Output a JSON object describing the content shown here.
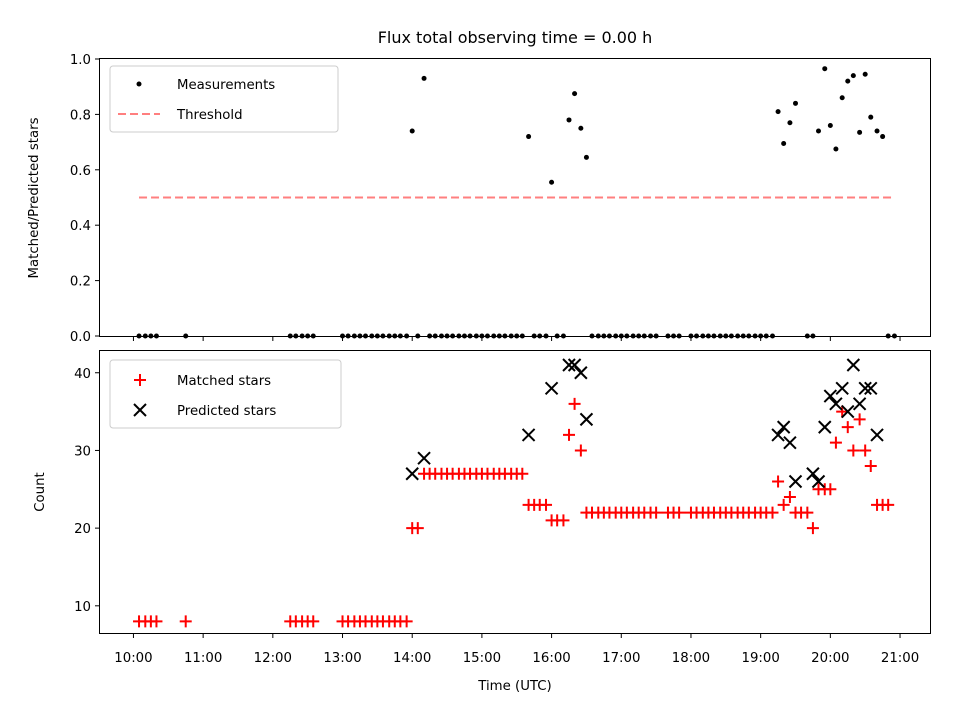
{
  "chart_data": [
    {
      "type": "scatter",
      "title": "Flux total observing time = 0.00 h",
      "xlabel": "",
      "ylabel": "Matched/Predicted stars",
      "xlim": [
        9.52,
        21.43
      ],
      "ylim": [
        0.0,
        1.0
      ],
      "yticks": [
        0.0,
        0.2,
        0.4,
        0.6,
        0.8,
        1.0
      ],
      "ytick_labels": [
        "0.0",
        "0.2",
        "0.4",
        "0.6",
        "0.8",
        "1.0"
      ],
      "legend": {
        "placement": "top-left",
        "entries": [
          "Measurements",
          "Threshold"
        ]
      },
      "series": [
        {
          "name": "Measurements",
          "marker": "dot",
          "color": "#000000",
          "points": [
            [
              10.08,
              0
            ],
            [
              10.17,
              0
            ],
            [
              10.25,
              0
            ],
            [
              10.33,
              0
            ],
            [
              10.75,
              0
            ],
            [
              12.25,
              0
            ],
            [
              12.33,
              0
            ],
            [
              12.42,
              0
            ],
            [
              12.5,
              0
            ],
            [
              12.58,
              0
            ],
            [
              13.0,
              0
            ],
            [
              13.08,
              0
            ],
            [
              13.17,
              0
            ],
            [
              13.25,
              0
            ],
            [
              13.33,
              0
            ],
            [
              13.42,
              0
            ],
            [
              13.5,
              0
            ],
            [
              13.58,
              0
            ],
            [
              13.67,
              0
            ],
            [
              13.75,
              0
            ],
            [
              13.83,
              0
            ],
            [
              13.92,
              0
            ],
            [
              14.0,
              0.74
            ],
            [
              14.08,
              0
            ],
            [
              14.17,
              0.93
            ],
            [
              14.25,
              0
            ],
            [
              14.33,
              0
            ],
            [
              14.42,
              0
            ],
            [
              14.5,
              0
            ],
            [
              14.58,
              0
            ],
            [
              14.67,
              0
            ],
            [
              14.75,
              0
            ],
            [
              14.83,
              0
            ],
            [
              14.92,
              0
            ],
            [
              15.0,
              0
            ],
            [
              15.08,
              0
            ],
            [
              15.17,
              0
            ],
            [
              15.25,
              0
            ],
            [
              15.33,
              0
            ],
            [
              15.42,
              0
            ],
            [
              15.5,
              0
            ],
            [
              15.58,
              0
            ],
            [
              15.67,
              0.72
            ],
            [
              15.75,
              0
            ],
            [
              15.83,
              0
            ],
            [
              15.92,
              0
            ],
            [
              16.0,
              0.555
            ],
            [
              16.08,
              0
            ],
            [
              16.17,
              0
            ],
            [
              16.25,
              0.78
            ],
            [
              16.33,
              0.875
            ],
            [
              16.42,
              0.75
            ],
            [
              16.5,
              0.645
            ],
            [
              16.58,
              0
            ],
            [
              16.67,
              0
            ],
            [
              16.75,
              0
            ],
            [
              16.83,
              0
            ],
            [
              16.92,
              0
            ],
            [
              17.0,
              0
            ],
            [
              17.08,
              0
            ],
            [
              17.17,
              0
            ],
            [
              17.25,
              0
            ],
            [
              17.33,
              0
            ],
            [
              17.42,
              0
            ],
            [
              17.5,
              0
            ],
            [
              17.67,
              0
            ],
            [
              17.75,
              0
            ],
            [
              17.83,
              0
            ],
            [
              18.0,
              0
            ],
            [
              18.08,
              0
            ],
            [
              18.17,
              0
            ],
            [
              18.25,
              0
            ],
            [
              18.33,
              0
            ],
            [
              18.42,
              0
            ],
            [
              18.5,
              0
            ],
            [
              18.58,
              0
            ],
            [
              18.67,
              0
            ],
            [
              18.75,
              0
            ],
            [
              18.83,
              0
            ],
            [
              18.92,
              0
            ],
            [
              19.0,
              0
            ],
            [
              19.08,
              0
            ],
            [
              19.17,
              0
            ],
            [
              19.25,
              0.81
            ],
            [
              19.33,
              0.695
            ],
            [
              19.42,
              0.77
            ],
            [
              19.5,
              0.84
            ],
            [
              19.67,
              0
            ],
            [
              19.75,
              0
            ],
            [
              19.83,
              0.74
            ],
            [
              19.92,
              0.965
            ],
            [
              20.0,
              0.76
            ],
            [
              20.08,
              0.675
            ],
            [
              20.17,
              0.86
            ],
            [
              20.25,
              0.92
            ],
            [
              20.33,
              0.94
            ],
            [
              20.42,
              0.735
            ],
            [
              20.5,
              0.945
            ],
            [
              20.58,
              0.79
            ],
            [
              20.67,
              0.74
            ],
            [
              20.75,
              0.72
            ],
            [
              20.83,
              0
            ],
            [
              20.92,
              0
            ]
          ]
        },
        {
          "name": "Threshold",
          "marker": "dashed-line",
          "color": "#ff7f7f",
          "points": [
            [
              10.08,
              0.5
            ],
            [
              20.92,
              0.5
            ]
          ]
        }
      ]
    },
    {
      "type": "scatter",
      "title": "",
      "xlabel": "Time (UTC)",
      "ylabel": "Count",
      "xlim": [
        9.52,
        21.43
      ],
      "ylim": [
        6.5,
        42.8
      ],
      "yticks": [
        10,
        20,
        30,
        40
      ],
      "ytick_labels": [
        "10",
        "20",
        "30",
        "40"
      ],
      "xticks": [
        10,
        11,
        12,
        13,
        14,
        15,
        16,
        17,
        18,
        19,
        20,
        21
      ],
      "xtick_labels": [
        "10:00",
        "11:00",
        "12:00",
        "13:00",
        "14:00",
        "15:00",
        "16:00",
        "17:00",
        "18:00",
        "19:00",
        "20:00",
        "21:00"
      ],
      "legend": {
        "placement": "top-left",
        "entries": [
          "Matched stars",
          "Predicted stars"
        ]
      },
      "series": [
        {
          "name": "Matched stars",
          "marker": "plus",
          "color": "#ff0000",
          "points": [
            [
              10.08,
              8
            ],
            [
              10.17,
              8
            ],
            [
              10.25,
              8
            ],
            [
              10.33,
              8
            ],
            [
              10.75,
              8
            ],
            [
              12.25,
              8
            ],
            [
              12.33,
              8
            ],
            [
              12.42,
              8
            ],
            [
              12.5,
              8
            ],
            [
              12.58,
              8
            ],
            [
              13.0,
              8
            ],
            [
              13.08,
              8
            ],
            [
              13.17,
              8
            ],
            [
              13.25,
              8
            ],
            [
              13.33,
              8
            ],
            [
              13.42,
              8
            ],
            [
              13.5,
              8
            ],
            [
              13.58,
              8
            ],
            [
              13.67,
              8
            ],
            [
              13.75,
              8
            ],
            [
              13.83,
              8
            ],
            [
              13.92,
              8
            ],
            [
              14.0,
              20
            ],
            [
              14.08,
              20
            ],
            [
              14.17,
              27
            ],
            [
              14.25,
              27
            ],
            [
              14.33,
              27
            ],
            [
              14.42,
              27
            ],
            [
              14.5,
              27
            ],
            [
              14.58,
              27
            ],
            [
              14.67,
              27
            ],
            [
              14.75,
              27
            ],
            [
              14.83,
              27
            ],
            [
              14.92,
              27
            ],
            [
              15.0,
              27
            ],
            [
              15.08,
              27
            ],
            [
              15.17,
              27
            ],
            [
              15.25,
              27
            ],
            [
              15.33,
              27
            ],
            [
              15.42,
              27
            ],
            [
              15.5,
              27
            ],
            [
              15.58,
              27
            ],
            [
              15.67,
              23
            ],
            [
              15.75,
              23
            ],
            [
              15.83,
              23
            ],
            [
              15.92,
              23
            ],
            [
              16.0,
              21
            ],
            [
              16.08,
              21
            ],
            [
              16.17,
              21
            ],
            [
              16.25,
              32
            ],
            [
              16.33,
              36
            ],
            [
              16.42,
              30
            ],
            [
              16.5,
              22
            ],
            [
              16.58,
              22
            ],
            [
              16.67,
              22
            ],
            [
              16.75,
              22
            ],
            [
              16.83,
              22
            ],
            [
              16.92,
              22
            ],
            [
              17.0,
              22
            ],
            [
              17.08,
              22
            ],
            [
              17.17,
              22
            ],
            [
              17.25,
              22
            ],
            [
              17.33,
              22
            ],
            [
              17.42,
              22
            ],
            [
              17.5,
              22
            ],
            [
              17.67,
              22
            ],
            [
              17.75,
              22
            ],
            [
              17.83,
              22
            ],
            [
              18.0,
              22
            ],
            [
              18.08,
              22
            ],
            [
              18.17,
              22
            ],
            [
              18.25,
              22
            ],
            [
              18.33,
              22
            ],
            [
              18.42,
              22
            ],
            [
              18.5,
              22
            ],
            [
              18.58,
              22
            ],
            [
              18.67,
              22
            ],
            [
              18.75,
              22
            ],
            [
              18.83,
              22
            ],
            [
              18.92,
              22
            ],
            [
              19.0,
              22
            ],
            [
              19.08,
              22
            ],
            [
              19.17,
              22
            ],
            [
              19.25,
              26
            ],
            [
              19.33,
              23
            ],
            [
              19.42,
              24
            ],
            [
              19.5,
              22
            ],
            [
              19.58,
              22
            ],
            [
              19.67,
              22
            ],
            [
              19.75,
              20
            ],
            [
              19.83,
              25
            ],
            [
              19.92,
              25
            ],
            [
              20.0,
              25
            ],
            [
              20.08,
              31
            ],
            [
              20.17,
              35
            ],
            [
              20.25,
              33
            ],
            [
              20.33,
              30
            ],
            [
              20.42,
              34
            ],
            [
              20.5,
              30
            ],
            [
              20.58,
              28
            ],
            [
              20.67,
              23
            ],
            [
              20.75,
              23
            ],
            [
              20.83,
              23
            ]
          ]
        },
        {
          "name": "Predicted stars",
          "marker": "x",
          "color": "#000000",
          "points": [
            [
              14.0,
              27
            ],
            [
              14.17,
              29
            ],
            [
              15.67,
              32
            ],
            [
              16.0,
              38
            ],
            [
              16.25,
              41
            ],
            [
              16.33,
              41
            ],
            [
              16.42,
              40
            ],
            [
              16.5,
              34
            ],
            [
              19.25,
              32
            ],
            [
              19.33,
              33
            ],
            [
              19.42,
              31
            ],
            [
              19.5,
              26
            ],
            [
              19.75,
              27
            ],
            [
              19.83,
              26
            ],
            [
              19.92,
              33
            ],
            [
              20.0,
              37
            ],
            [
              20.08,
              36
            ],
            [
              20.17,
              38
            ],
            [
              20.25,
              35
            ],
            [
              20.33,
              41
            ],
            [
              20.42,
              36
            ],
            [
              20.5,
              38
            ],
            [
              20.58,
              38
            ],
            [
              20.67,
              32
            ]
          ]
        }
      ]
    }
  ]
}
